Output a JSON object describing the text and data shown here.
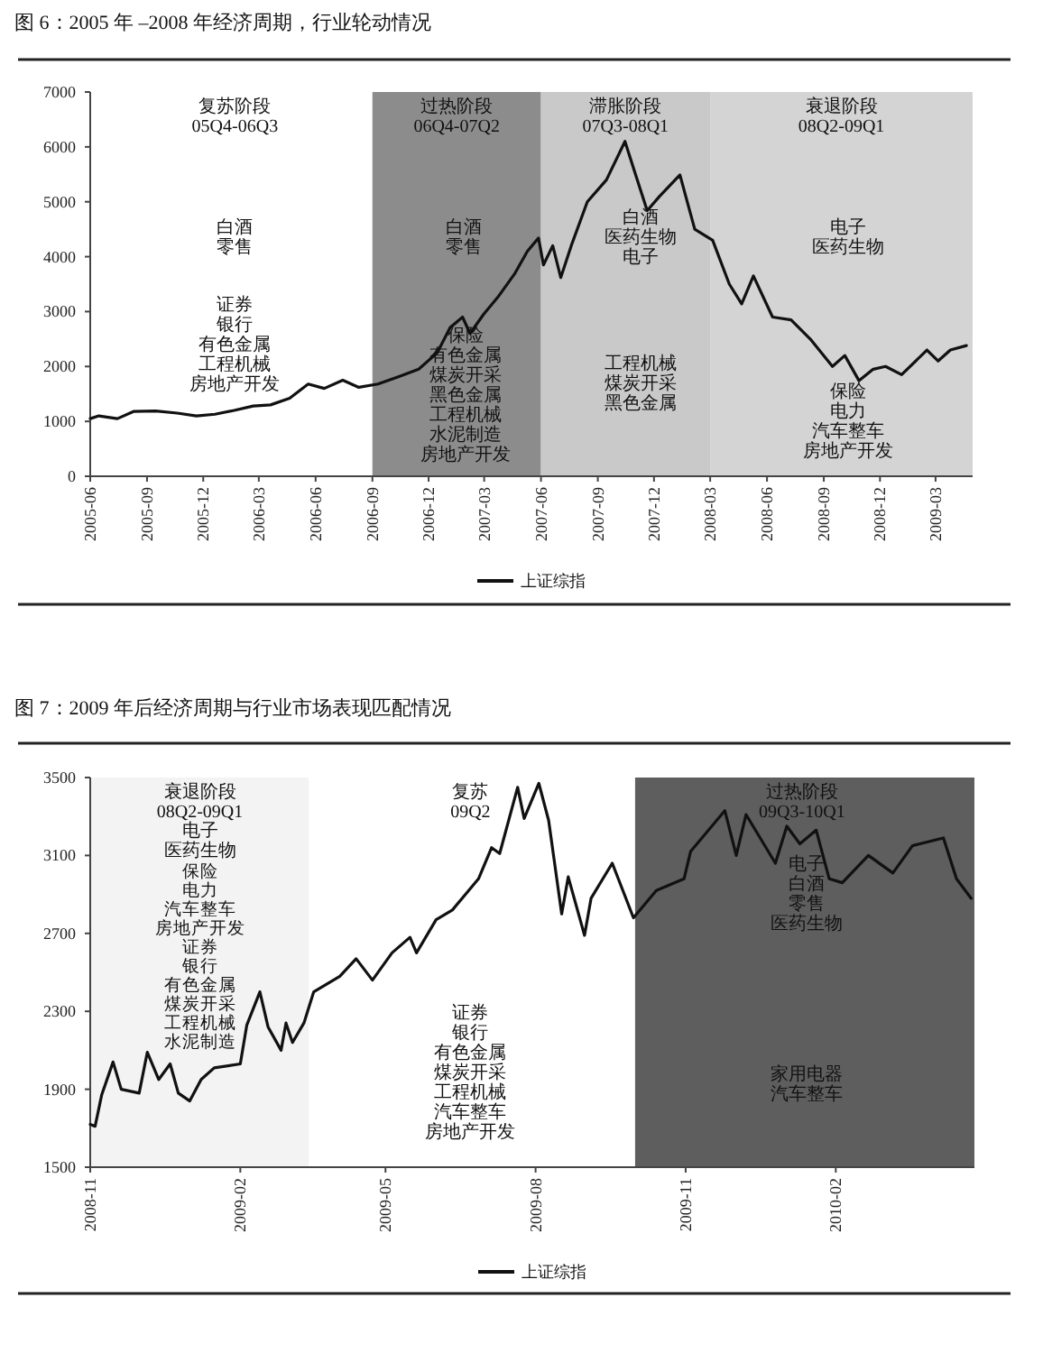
{
  "chart_data": [
    {
      "type": "line",
      "title": "图 6：2005 年 –2008 年经济周期，行业轮动情况",
      "xlim": [
        "2005-06-01",
        "2009-04-30"
      ],
      "ylim": [
        0,
        7000
      ],
      "yticks": [
        0,
        1000,
        2000,
        3000,
        4000,
        5000,
        6000,
        7000
      ],
      "xticks": [
        "2005-06",
        "2005-09",
        "2005-12",
        "2006-03",
        "2006-06",
        "2006-09",
        "2006-12",
        "2007-03",
        "2007-06",
        "2007-09",
        "2007-12",
        "2008-03",
        "2008-06",
        "2008-09",
        "2008-12",
        "2009-03"
      ],
      "grid": false,
      "legend": "bottom",
      "marker": "none",
      "line_style": "solid",
      "series": [
        {
          "name": "上证综指",
          "color": "#111111",
          "x": [
            "2005-06-01",
            "2005-06-15",
            "2005-07-15",
            "2005-08-10",
            "2005-09-15",
            "2005-10-20",
            "2005-11-20",
            "2005-12-20",
            "2006-01-20",
            "2006-02-20",
            "2006-03-20",
            "2006-04-20",
            "2006-05-20",
            "2006-06-15",
            "2006-07-15",
            "2006-08-10",
            "2006-09-10",
            "2006-10-15",
            "2006-11-15",
            "2006-12-15",
            "2007-01-05",
            "2007-01-25",
            "2007-02-06",
            "2007-02-28",
            "2007-03-23",
            "2007-04-20",
            "2007-05-10",
            "2007-05-28",
            "2007-06-05",
            "2007-06-20",
            "2007-07-03",
            "2007-07-20",
            "2007-08-15",
            "2007-09-15",
            "2007-10-15",
            "2007-11-01",
            "2007-11-20",
            "2007-12-10",
            "2008-01-12",
            "2008-02-05",
            "2008-03-05",
            "2008-04-01",
            "2008-04-21",
            "2008-05-10",
            "2008-06-10",
            "2008-07-10",
            "2008-08-10",
            "2008-09-15",
            "2008-10-05",
            "2008-10-28",
            "2008-11-20",
            "2008-12-10",
            "2009-01-05",
            "2009-02-15",
            "2009-03-05",
            "2009-03-25",
            "2009-04-20"
          ],
          "values": [
            1050,
            1100,
            1050,
            1180,
            1190,
            1150,
            1100,
            1130,
            1200,
            1280,
            1300,
            1420,
            1680,
            1600,
            1750,
            1620,
            1680,
            1820,
            1950,
            2250,
            2710,
            2900,
            2600,
            2950,
            3260,
            3700,
            4100,
            4340,
            3850,
            4200,
            3620,
            4200,
            5000,
            5400,
            6100,
            5500,
            4840,
            5100,
            5490,
            4500,
            4300,
            3500,
            3140,
            3650,
            2900,
            2850,
            2500,
            2000,
            2200,
            1740,
            1950,
            2000,
            1850,
            2300,
            2100,
            2300,
            2380
          ]
        }
      ],
      "bands": [
        {
          "axis": "x",
          "from": "2006-09-01",
          "to": "2007-06-01",
          "label": "过热阶段\n06Q4-07Q2",
          "color": "#8c8c8c"
        },
        {
          "axis": "x",
          "from": "2007-06-01",
          "to": "2008-03-01",
          "label": "滞胀阶段\n07Q3-08Q1",
          "color": "#c9c9c9"
        },
        {
          "axis": "x",
          "from": "2008-03-01",
          "to": "2009-04-30",
          "label": "衰退阶段\n08Q2-09Q1",
          "color": "#d4d4d4"
        }
      ],
      "annotations": [
        "复苏阶段",
        "05Q4-06Q3",
        "白酒",
        "零售",
        "证券",
        "银行",
        "有色金属",
        "工程机械",
        "房地产开发",
        "白酒",
        "零售",
        "保险",
        "有色金属",
        "煤炭开采",
        "黑色金属",
        "工程机械",
        "水泥制造",
        "房地产开发",
        "白酒",
        "医药生物",
        "电子",
        "工程机械",
        "煤炭开采",
        "黑色金属",
        "电子",
        "医药生物",
        "保险",
        "电力",
        "汽车整车",
        "房地产开发"
      ]
    },
    {
      "type": "line",
      "title": "图 7：2009 年后经济周期与行业市场表现匹配情况",
      "xlim": [
        "2008-11-01",
        "2010-04-27"
      ],
      "ylim": [
        1500,
        3500
      ],
      "yticks": [
        1500,
        1900,
        2300,
        2700,
        3100,
        3500
      ],
      "xticks": [
        "2008-11",
        "2009-02",
        "2009-05",
        "2009-08",
        "2009-11",
        "2010-02"
      ],
      "grid": false,
      "legend": "bottom",
      "marker": "none",
      "line_style": "solid",
      "series": [
        {
          "name": "上证综指",
          "color": "#111111",
          "x": [
            "2008-11-01",
            "2008-11-04",
            "2008-11-08",
            "2008-11-15",
            "2008-11-20",
            "2008-12-01",
            "2008-12-06",
            "2008-12-13",
            "2008-12-20",
            "2008-12-25",
            "2009-01-01",
            "2009-01-08",
            "2009-01-16",
            "2009-02-01",
            "2009-02-05",
            "2009-02-13",
            "2009-02-18",
            "2009-02-26",
            "2009-03-01",
            "2009-03-05",
            "2009-03-12",
            "2009-03-18",
            "2009-04-03",
            "2009-04-13",
            "2009-04-23",
            "2009-05-05",
            "2009-05-16",
            "2009-05-20",
            "2009-06-01",
            "2009-06-11",
            "2009-06-27",
            "2009-07-05",
            "2009-07-10",
            "2009-07-21",
            "2009-07-25",
            "2009-08-03",
            "2009-08-09",
            "2009-08-17",
            "2009-08-21",
            "2009-08-31",
            "2009-09-04",
            "2009-09-17",
            "2009-09-30",
            "2009-10-14",
            "2009-10-31",
            "2009-11-04",
            "2009-11-25",
            "2009-12-02",
            "2009-12-08",
            "2009-12-26",
            "2010-01-02",
            "2010-01-10",
            "2010-01-20",
            "2010-01-28",
            "2010-02-05",
            "2010-02-21",
            "2010-03-08",
            "2010-03-20",
            "2010-04-08",
            "2010-04-16",
            "2010-04-25"
          ],
          "values": [
            1720,
            1710,
            1870,
            2040,
            1900,
            1880,
            2090,
            1950,
            2030,
            1880,
            1840,
            1950,
            2010,
            2030,
            2230,
            2400,
            2220,
            2100,
            2240,
            2140,
            2240,
            2400,
            2480,
            2570,
            2460,
            2600,
            2680,
            2600,
            2770,
            2820,
            2980,
            3140,
            3110,
            3450,
            3290,
            3470,
            3280,
            2800,
            2990,
            2690,
            2880,
            3060,
            2780,
            2920,
            2980,
            3120,
            3330,
            3100,
            3310,
            3060,
            3250,
            3160,
            3230,
            2980,
            2960,
            3100,
            3010,
            3150,
            3190,
            2980,
            2880
          ]
        }
      ],
      "bands": [
        {
          "axis": "x",
          "from": "2008-11-01",
          "to": "2009-03-15",
          "label": "衰退阶段\n08Q2-09Q1",
          "color": "#f3f3f3"
        },
        {
          "axis": "x",
          "from": "2009-10-01",
          "to": "2010-04-27",
          "label": "过热阶段\n09Q3-10Q1",
          "color": "#5e5e5e"
        }
      ],
      "annotations": [
        "复苏",
        "09Q2",
        "电子",
        "医药生物",
        "保险",
        "电力",
        "汽车整车",
        "房地产开发",
        "证券",
        "银行",
        "有色金属",
        "煤炭开采",
        "工程机械",
        "水泥制造",
        "证券",
        "银行",
        "有色金属",
        "煤炭开采",
        "工程机械",
        "汽车整车",
        "房地产开发",
        "电子",
        "白酒",
        "零售",
        "医药生物",
        "家用电器",
        "汽车整车"
      ]
    }
  ]
}
